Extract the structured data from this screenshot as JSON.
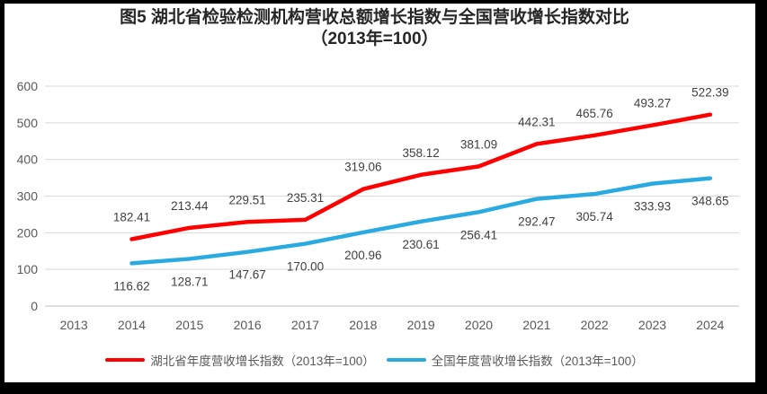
{
  "title": {
    "line1": "图5 湖北省检验检测机构营收总额增长指数与全国营收增长指数对比",
    "line2": "（2013年=100）"
  },
  "chart_data": {
    "type": "line",
    "categories": [
      "2013",
      "2014",
      "2015",
      "2016",
      "2017",
      "2018",
      "2019",
      "2020",
      "2021",
      "2022",
      "2023",
      "2024"
    ],
    "series": [
      {
        "name": "湖北省年度营收增长指数（2013年=100）",
        "color": "#FF0000",
        "label_position": "above",
        "values": [
          null,
          182.41,
          213.44,
          229.51,
          235.31,
          319.06,
          358.12,
          381.09,
          442.31,
          465.76,
          493.27,
          522.39
        ]
      },
      {
        "name": "全国年度营收增长指数（2013年=100）",
        "color": "#29ABE2",
        "label_position": "below",
        "values": [
          null,
          116.62,
          128.71,
          147.67,
          170.0,
          200.96,
          230.61,
          256.41,
          292.47,
          305.74,
          333.93,
          348.65
        ]
      }
    ],
    "ylim": [
      0,
      600
    ],
    "ytick_step": 100,
    "grid": true,
    "legend_position": "bottom",
    "data_labels": true,
    "styles": {
      "gridline_color": "#D9D9D9",
      "axis_line_color": "#BFBFBF",
      "tick_label_color": "#595959",
      "data_label_color": "#404040",
      "frame_border_color": "#000000"
    }
  }
}
